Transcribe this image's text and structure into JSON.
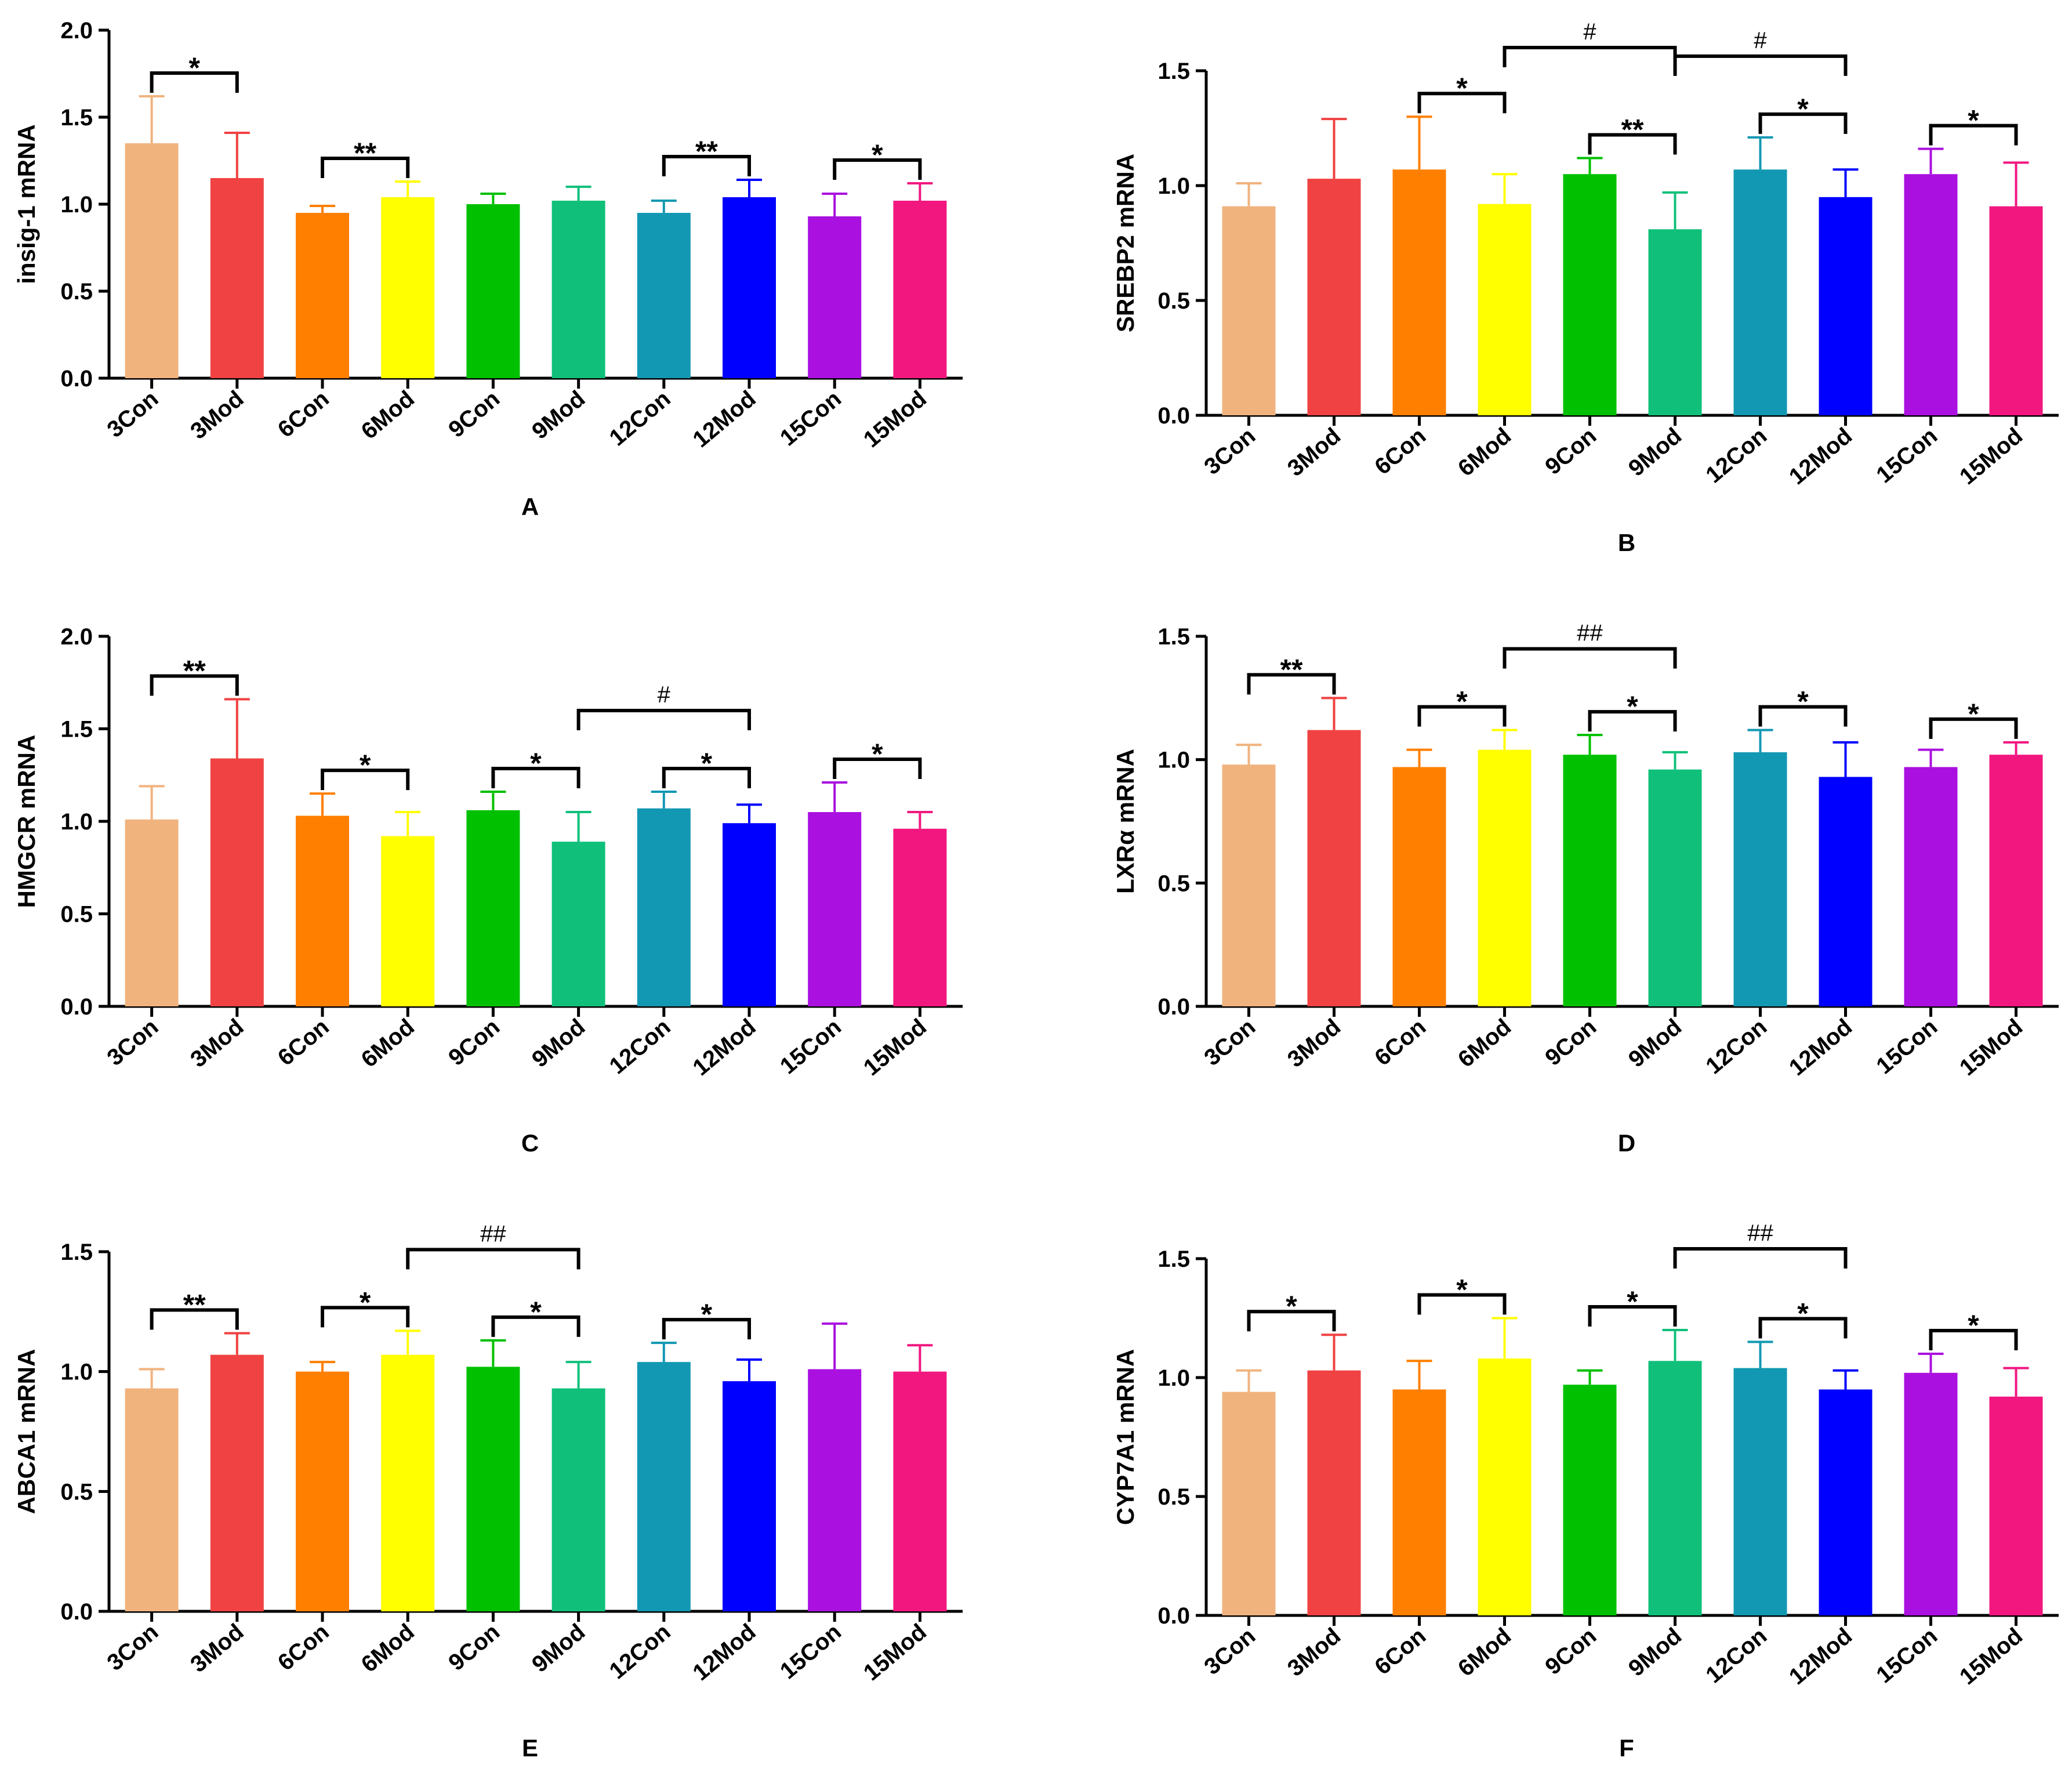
{
  "colors": [
    "#F0B37E",
    "#F04242",
    "#FF7F00",
    "#FFFF00",
    "#00C000",
    "#10C07A",
    "#1298B2",
    "#0000FF",
    "#AA10E0",
    "#F2177F"
  ],
  "chart_data": [
    {
      "type": "bar",
      "panel": "A",
      "ylabel": "insig-1 mRNA",
      "ylim": [
        0,
        2.0
      ],
      "yticks": [
        "0.0",
        "0.5",
        "1.0",
        "1.5",
        "2.0"
      ],
      "categories": [
        "3Con",
        "3Mod",
        "6Con",
        "6Mod",
        "9Con",
        "9Mod",
        "12Con",
        "12Mod",
        "15Con",
        "15Mod"
      ],
      "values": [
        1.35,
        1.15,
        0.95,
        1.04,
        1.0,
        1.02,
        0.95,
        1.04,
        0.93,
        1.02
      ],
      "errors": [
        0.27,
        0.26,
        0.04,
        0.09,
        0.06,
        0.08,
        0.07,
        0.1,
        0.13,
        0.1
      ],
      "annotations": [
        {
          "from": 0,
          "to": 1,
          "level": 0,
          "label": "*"
        },
        {
          "from": 2,
          "to": 3,
          "level": 0,
          "label": "**"
        },
        {
          "from": 6,
          "to": 7,
          "level": 0,
          "label": "**"
        },
        {
          "from": 8,
          "to": 9,
          "level": 0,
          "label": "*"
        }
      ]
    },
    {
      "type": "bar",
      "panel": "B",
      "ylabel": "SREBP2 mRNA",
      "ylim": [
        0,
        1.5
      ],
      "yticks": [
        "0.0",
        "0.5",
        "1.0",
        "1.5"
      ],
      "categories": [
        "3Con",
        "3Mod",
        "6Con",
        "6Mod",
        "9Con",
        "9Mod",
        "12Con",
        "12Mod",
        "15Con",
        "15Mod"
      ],
      "values": [
        0.91,
        1.03,
        1.07,
        0.92,
        1.05,
        0.81,
        1.07,
        0.95,
        1.05,
        0.91
      ],
      "errors": [
        0.1,
        0.26,
        0.23,
        0.13,
        0.07,
        0.16,
        0.14,
        0.12,
        0.11,
        0.19
      ],
      "annotations": [
        {
          "from": 2,
          "to": 3,
          "level": 0,
          "label": "*"
        },
        {
          "from": 4,
          "to": 5,
          "level": 0,
          "label": "**"
        },
        {
          "from": 6,
          "to": 7,
          "level": 0,
          "label": "*"
        },
        {
          "from": 8,
          "to": 9,
          "level": 0,
          "label": "*"
        },
        {
          "from": 3,
          "to": 5,
          "level": 1,
          "label": "#"
        },
        {
          "from": 5,
          "to": 7,
          "level": 1,
          "label": "#"
        }
      ]
    },
    {
      "type": "bar",
      "panel": "C",
      "ylabel": "HMGCR mRNA",
      "ylim": [
        0,
        2.0
      ],
      "yticks": [
        "0.0",
        "0.5",
        "1.0",
        "1.5",
        "2.0"
      ],
      "categories": [
        "3Con",
        "3Mod",
        "6Con",
        "6Mod",
        "9Con",
        "9Mod",
        "12Con",
        "12Mod",
        "15Con",
        "15Mod"
      ],
      "values": [
        1.01,
        1.34,
        1.03,
        0.92,
        1.06,
        0.89,
        1.07,
        0.99,
        1.05,
        0.96
      ],
      "errors": [
        0.18,
        0.32,
        0.12,
        0.13,
        0.1,
        0.16,
        0.09,
        0.1,
        0.16,
        0.09
      ],
      "annotations": [
        {
          "from": 0,
          "to": 1,
          "level": 0,
          "label": "**"
        },
        {
          "from": 2,
          "to": 3,
          "level": 0,
          "label": "*"
        },
        {
          "from": 4,
          "to": 5,
          "level": 0,
          "label": "*"
        },
        {
          "from": 6,
          "to": 7,
          "level": 0,
          "label": "*"
        },
        {
          "from": 8,
          "to": 9,
          "level": 0,
          "label": "*"
        },
        {
          "from": 5,
          "to": 7,
          "level": 1,
          "label": "#"
        }
      ]
    },
    {
      "type": "bar",
      "panel": "D",
      "ylabel": "LXRα mRNA",
      "ylim": [
        0,
        1.5
      ],
      "yticks": [
        "0.0",
        "0.5",
        "1.0",
        "1.5"
      ],
      "categories": [
        "3Con",
        "3Mod",
        "6Con",
        "6Mod",
        "9Con",
        "9Mod",
        "12Con",
        "12Mod",
        "15Con",
        "15Mod"
      ],
      "values": [
        0.98,
        1.12,
        0.97,
        1.04,
        1.02,
        0.96,
        1.03,
        0.93,
        0.97,
        1.02
      ],
      "errors": [
        0.08,
        0.13,
        0.07,
        0.08,
        0.08,
        0.07,
        0.09,
        0.14,
        0.07,
        0.05
      ],
      "annotations": [
        {
          "from": 0,
          "to": 1,
          "level": 0,
          "label": "**"
        },
        {
          "from": 2,
          "to": 3,
          "level": 0,
          "label": "*"
        },
        {
          "from": 4,
          "to": 5,
          "level": 0,
          "label": "*"
        },
        {
          "from": 6,
          "to": 7,
          "level": 0,
          "label": "*"
        },
        {
          "from": 8,
          "to": 9,
          "level": 0,
          "label": "*"
        },
        {
          "from": 3,
          "to": 5,
          "level": 1,
          "label": "##"
        }
      ]
    },
    {
      "type": "bar",
      "panel": "E",
      "ylabel": "ABCA1 mRNA",
      "ylim": [
        0,
        1.5
      ],
      "yticks": [
        "0.0",
        "0.5",
        "1.0",
        "1.5"
      ],
      "categories": [
        "3Con",
        "3Mod",
        "6Con",
        "6Mod",
        "9Con",
        "9Mod",
        "12Con",
        "12Mod",
        "15Con",
        "15Mod"
      ],
      "values": [
        0.93,
        1.07,
        1.0,
        1.07,
        1.02,
        0.93,
        1.04,
        0.96,
        1.01,
        1.0
      ],
      "errors": [
        0.08,
        0.09,
        0.04,
        0.1,
        0.11,
        0.11,
        0.08,
        0.09,
        0.19,
        0.11
      ],
      "annotations": [
        {
          "from": 0,
          "to": 1,
          "level": 0,
          "label": "**"
        },
        {
          "from": 2,
          "to": 3,
          "level": 0,
          "label": "*"
        },
        {
          "from": 4,
          "to": 5,
          "level": 0,
          "label": "*"
        },
        {
          "from": 6,
          "to": 7,
          "level": 0,
          "label": "*"
        },
        {
          "from": 3,
          "to": 5,
          "level": 1,
          "label": "##"
        }
      ]
    },
    {
      "type": "bar",
      "panel": "F",
      "ylabel": "CYP7A1 mRNA",
      "ylim": [
        0,
        1.5
      ],
      "yticks": [
        "0.0",
        "0.5",
        "1.0",
        "1.5"
      ],
      "categories": [
        "3Con",
        "3Mod",
        "6Con",
        "6Mod",
        "9Con",
        "9Mod",
        "12Con",
        "12Mod",
        "15Con",
        "15Mod"
      ],
      "values": [
        0.94,
        1.03,
        0.95,
        1.08,
        0.97,
        1.07,
        1.04,
        0.95,
        1.02,
        0.92
      ],
      "errors": [
        0.09,
        0.15,
        0.12,
        0.17,
        0.06,
        0.13,
        0.11,
        0.08,
        0.08,
        0.12
      ],
      "annotations": [
        {
          "from": 0,
          "to": 1,
          "level": 0,
          "label": "*"
        },
        {
          "from": 2,
          "to": 3,
          "level": 0,
          "label": "*"
        },
        {
          "from": 4,
          "to": 5,
          "level": 0,
          "label": "*"
        },
        {
          "from": 6,
          "to": 7,
          "level": 0,
          "label": "*"
        },
        {
          "from": 8,
          "to": 9,
          "level": 0,
          "label": "*"
        },
        {
          "from": 5,
          "to": 7,
          "level": 1,
          "label": "##"
        }
      ]
    }
  ]
}
